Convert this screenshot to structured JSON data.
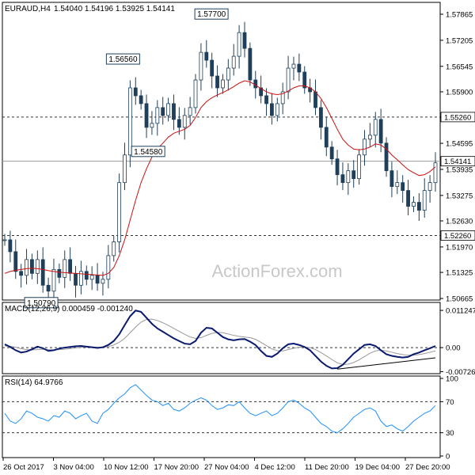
{
  "chart_data": [
    {
      "type": "candlestick",
      "title": "EURAUD,H4",
      "header_values": [
        "1.54040",
        "1.54196",
        "1.53925",
        "1.54141"
      ],
      "ylim": [
        1.50665,
        1.58065
      ],
      "y_ticks": [
        "1.57865",
        "1.57205",
        "1.56545",
        "1.55900",
        "1.55260",
        "1.54595",
        "1.53935",
        "1.53275",
        "1.52630",
        "1.52260",
        "1.51970",
        "1.51325",
        "1.50665"
      ],
      "price_tag": "1.54141",
      "levels": [
        {
          "label": "1.55260",
          "value": 1.5526,
          "style": "dashed"
        },
        {
          "label": "1.54141",
          "value": 1.54141,
          "style": "solid"
        },
        {
          "label": "1.52260",
          "value": 1.5226,
          "style": "dashed"
        }
      ],
      "annotations": [
        {
          "label": "1.57700",
          "value": 1.577
        },
        {
          "label": "1.56560",
          "value": 1.5656
        },
        {
          "label": "1.54580",
          "value": 1.5458
        },
        {
          "label": "1.50790",
          "value": 1.5079
        }
      ],
      "close_path": [
        1.5215,
        1.5185,
        1.5135,
        1.5125,
        1.5165,
        1.513,
        1.5165,
        1.51,
        1.5085,
        1.514,
        1.512,
        1.5165,
        1.513,
        1.51,
        1.5135,
        1.5115,
        1.5125,
        1.5105,
        1.5115,
        1.5175,
        1.521,
        1.536,
        1.543,
        1.56,
        1.558,
        1.556,
        1.55,
        1.551,
        1.555,
        1.553,
        1.556,
        1.552,
        1.55,
        1.553,
        1.555,
        1.562,
        1.569,
        1.567,
        1.563,
        1.56,
        1.562,
        1.565,
        1.568,
        1.574,
        1.57,
        1.562,
        1.56,
        1.558,
        1.556,
        1.553,
        1.556,
        1.559,
        1.565,
        1.566,
        1.564,
        1.56,
        1.559,
        1.555,
        1.55,
        1.545,
        1.542,
        1.538,
        1.536,
        1.539,
        1.537,
        1.543,
        1.547,
        1.548,
        1.552,
        1.546,
        1.539,
        1.535,
        1.536,
        1.534,
        1.53,
        1.531,
        1.529,
        1.534,
        1.536,
        1.541
      ],
      "ma_path": [
        1.513,
        1.5135,
        1.5138,
        1.514,
        1.5142,
        1.5143,
        1.5142,
        1.514,
        1.5137,
        1.5135,
        1.5133,
        1.5132,
        1.5131,
        1.513,
        1.5129,
        1.5128,
        1.5127,
        1.5126,
        1.5125,
        1.513,
        1.5145,
        1.5175,
        1.5215,
        1.5265,
        1.5315,
        1.536,
        1.5395,
        1.5425,
        1.5445,
        1.546,
        1.5475,
        1.5485,
        1.549,
        1.5495,
        1.5505,
        1.5525,
        1.555,
        1.5565,
        1.5575,
        1.5582,
        1.5588,
        1.5595,
        1.5603,
        1.5612,
        1.5618,
        1.5615,
        1.5607,
        1.5598,
        1.559,
        1.5585,
        1.5583,
        1.5585,
        1.5592,
        1.56,
        1.5605,
        1.5605,
        1.56,
        1.559,
        1.5573,
        1.555,
        1.5523,
        1.5495,
        1.547,
        1.5455,
        1.5445,
        1.5443,
        1.5445,
        1.545,
        1.5458,
        1.5455,
        1.5445,
        1.543,
        1.5418,
        1.5405,
        1.5393,
        1.5385,
        1.5378,
        1.538,
        1.5388,
        1.54
      ],
      "x_labels": [
        "26 Oct 2017",
        "3 Nov 04:00",
        "10 Nov 12:00",
        "17 Nov 20:00",
        "27 Nov 04:00",
        "4 Dec 12:00",
        "11 Dec 20:00",
        "19 Dec 04:00",
        "27 Dec 20:00"
      ],
      "watermark": "ActionForex.com"
    },
    {
      "type": "line",
      "title": "MACD(12,26,9) 0.000459 -0.001240",
      "ylim": [
        -0.0074,
        0.0127
      ],
      "y_ticks": [
        "0.011247",
        "0.00",
        "-0.007263"
      ],
      "macd": [
        0.001,
        0.0002,
        -0.0008,
        -0.0015,
        -0.0012,
        -0.0005,
        0.0003,
        -0.0002,
        -0.001,
        -0.0008,
        -0.0003,
        0.0,
        0.0002,
        0.0004,
        0.0005,
        0.0003,
        0.0001,
        -0.0001,
        0.0001,
        0.0008,
        0.002,
        0.004,
        0.0068,
        0.0095,
        0.0112,
        0.0108,
        0.009,
        0.0072,
        0.0058,
        0.0048,
        0.0038,
        0.0028,
        0.002,
        0.0012,
        0.001,
        0.002,
        0.0045,
        0.006,
        0.0058,
        0.0045,
        0.0032,
        0.0025,
        0.0022,
        0.0025,
        0.0026,
        0.0018,
        0.0008,
        -0.001,
        -0.0025,
        -0.0028,
        -0.0018,
        -0.0002,
        0.001,
        0.0012,
        0.0008,
        0.0002,
        -0.0008,
        -0.0025,
        -0.0042,
        -0.0055,
        -0.0063,
        -0.0062,
        -0.0052,
        -0.0035,
        -0.0018,
        -0.0005,
        0.0008,
        0.001,
        0.0005,
        -0.0008,
        -0.002,
        -0.0025,
        -0.0028,
        -0.003,
        -0.0028,
        -0.002,
        -0.0015,
        -0.0008,
        -0.0002,
        0.0005
      ],
      "signal": [
        0.0005,
        0.0004,
        0.0001,
        -0.0003,
        -0.0006,
        -0.0007,
        -0.0006,
        -0.0005,
        -0.0006,
        -0.0007,
        -0.0006,
        -0.0005,
        -0.0003,
        -0.0001,
        0.0001,
        0.0002,
        0.0002,
        0.0001,
        0.0001,
        0.0003,
        0.0008,
        0.0016,
        0.0028,
        0.0045,
        0.0062,
        0.0077,
        0.0085,
        0.0086,
        0.0082,
        0.0075,
        0.0067,
        0.0058,
        0.0049,
        0.004,
        0.0032,
        0.0028,
        0.003,
        0.0037,
        0.0043,
        0.0046,
        0.0045,
        0.0041,
        0.0037,
        0.0034,
        0.0032,
        0.003,
        0.0025,
        0.0016,
        0.0006,
        -0.0004,
        -0.0009,
        -0.001,
        -0.0006,
        -0.0002,
        0.0001,
        0.0002,
        0.0,
        -0.0006,
        -0.0015,
        -0.0025,
        -0.0036,
        -0.0046,
        -0.0051,
        -0.005,
        -0.0045,
        -0.0037,
        -0.0027,
        -0.0017,
        -0.001,
        -0.0008,
        -0.001,
        -0.0014,
        -0.0018,
        -0.0021,
        -0.0023,
        -0.0023,
        -0.0021,
        -0.0018,
        -0.0014,
        -0.001
      ],
      "trendline": [
        [
          61,
          -0.0065
        ],
        [
          79,
          -0.0031
        ]
      ]
    },
    {
      "type": "line",
      "title": "RSI(14) 64.9766",
      "ylim": [
        0,
        100
      ],
      "y_ticks": [
        "100",
        "70",
        "30",
        "0"
      ],
      "levels": [
        70,
        30
      ],
      "values": [
        55,
        45,
        42,
        48,
        58,
        55,
        50,
        48,
        45,
        52,
        50,
        58,
        55,
        48,
        52,
        55,
        45,
        42,
        55,
        60,
        68,
        75,
        80,
        88,
        92,
        85,
        78,
        72,
        70,
        65,
        68,
        60,
        58,
        62,
        68,
        72,
        75,
        72,
        65,
        60,
        62,
        66,
        65,
        70,
        62,
        55,
        52,
        55,
        58,
        52,
        55,
        62,
        70,
        72,
        68,
        62,
        58,
        50,
        42,
        38,
        32,
        30,
        35,
        42,
        50,
        55,
        60,
        62,
        58,
        45,
        38,
        40,
        35,
        32,
        38,
        45,
        50,
        55,
        58,
        65
      ]
    }
  ]
}
